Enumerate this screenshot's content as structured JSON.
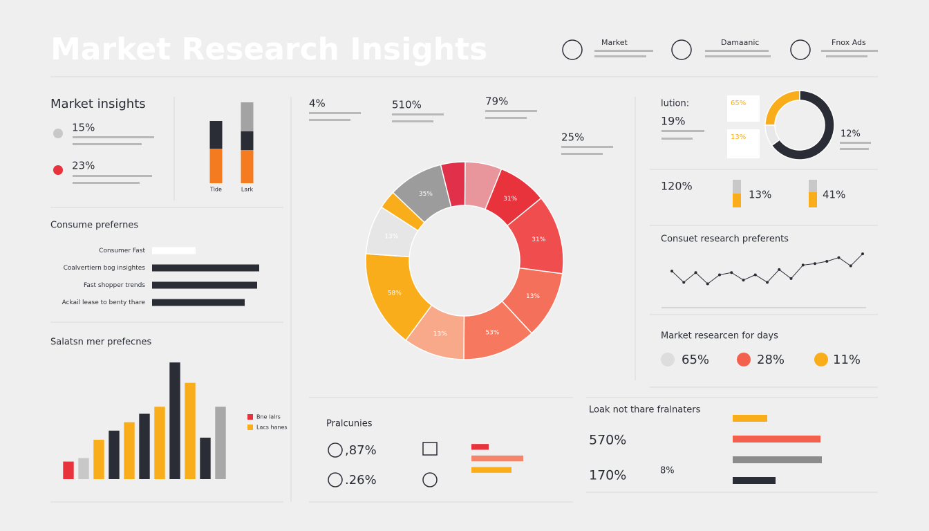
{
  "header": {
    "title": "Market Research Insights",
    "items": [
      "Market",
      "Damaanic",
      "Fnox Ads"
    ]
  },
  "panels": {
    "insights": {
      "title": "Market insights",
      "stats": [
        "15%",
        "23%"
      ]
    },
    "lution": {
      "title": "lution:",
      "stats": [
        "19%",
        "65%",
        "13%",
        "12%"
      ]
    },
    "stats_row": [
      "120%",
      "13%",
      "41%"
    ],
    "days": {
      "title": "Market researcen for days",
      "stats": [
        "65%",
        "28%",
        "11%"
      ]
    },
    "pralc": {
      "title": "Pralcunies",
      "stats": [
        ",87%",
        ".26%"
      ]
    },
    "loak": {
      "title": "Loak not thare fralnaters",
      "stats": [
        "570%",
        "170%",
        "8%"
      ]
    }
  },
  "chart_data": [
    {
      "type": "stacked_bar",
      "categories": [
        "Tide",
        "Lark"
      ],
      "series": [
        {
          "color": "#f47b20",
          "values": [
            50,
            48
          ]
        },
        {
          "color": "#2b2d36",
          "values": [
            40,
            27
          ]
        },
        {
          "color": "#a3a3a3",
          "values": [
            0,
            42
          ]
        }
      ],
      "ylim": [
        0,
        120
      ]
    },
    {
      "type": "hbar",
      "title": "Consume prefernes",
      "categories": [
        "Consumer Fast",
        "Coalvertiern bog insightes",
        "Fast shopper trends",
        "Ackail lease to benty thare"
      ],
      "values": [
        63,
        155,
        152,
        134
      ],
      "colors": [
        "#ffffff",
        "#2b2d36",
        "#2b2d36",
        "#2b2d36"
      ],
      "xlim": [
        0,
        160
      ]
    },
    {
      "type": "bar",
      "title": "Salatsn mer prefecnes",
      "categories": [
        null,
        null,
        null,
        null,
        null,
        null,
        null,
        null,
        null,
        null,
        null
      ],
      "values": [
        25,
        30,
        56,
        69,
        81,
        93,
        103,
        166,
        137,
        59,
        103
      ],
      "colors": [
        "#e8323c",
        "#c8c8c8",
        "#f9ad1a",
        "#2b2d36",
        "#f9ad1a",
        "#2b2d36",
        "#f9ad1a",
        "#2b2d36",
        "#f9ad1a",
        "#2b2d36",
        "#a8a8a8"
      ],
      "ylim": [
        0,
        180
      ],
      "legend": [
        {
          "name": "Bne lalrs",
          "color": "#e8323c"
        },
        {
          "name": "Lacs hanes",
          "color": "#f9ad1a"
        }
      ]
    },
    {
      "type": "donut",
      "values": [
        4,
        6,
        8,
        13,
        11,
        12,
        10,
        16,
        8,
        3,
        9
      ],
      "colors": [
        "#e0304a",
        "#e8959c",
        "#e8323c",
        "#f04e4e",
        "#f4705a",
        "#f6795f",
        "#f7a98a",
        "#f9ad1a",
        "#e6e6e6",
        "#f9ad1a",
        "#9c9c9c"
      ],
      "labels": [
        null,
        null,
        "31%",
        "31%",
        "13%",
        "53%",
        "13%",
        "58%",
        "13%",
        null,
        "35%"
      ],
      "annotations": [
        "4%",
        "510%",
        "79%",
        "25%"
      ]
    },
    {
      "type": "donut",
      "values": [
        25,
        65,
        10
      ],
      "colors": [
        "#f9ad1a",
        "#2b2d36",
        "#e8e8e8"
      ]
    },
    {
      "type": "line",
      "title": "Consuet research preferents",
      "values": [
        35,
        20,
        33,
        18,
        30,
        33,
        23,
        30,
        20,
        37,
        25,
        43,
        45,
        48,
        53,
        42,
        58
      ],
      "color": "#2b2d36",
      "ylim": [
        0,
        60
      ]
    },
    {
      "type": "hbar",
      "categories": [
        null,
        null,
        null
      ],
      "values": [
        25,
        75,
        58
      ],
      "colors": [
        "#e8323c",
        "#f4846a",
        "#f9ad1a"
      ],
      "xlim": [
        0,
        115
      ]
    },
    {
      "type": "hbar",
      "categories": [
        null,
        null,
        null,
        null
      ],
      "values": [
        50,
        127,
        129,
        62
      ],
      "colors": [
        "#f9ad1a",
        "#f4604e",
        "#8c8c8c",
        "#2b2d36"
      ],
      "xlim": [
        0,
        140
      ]
    }
  ]
}
